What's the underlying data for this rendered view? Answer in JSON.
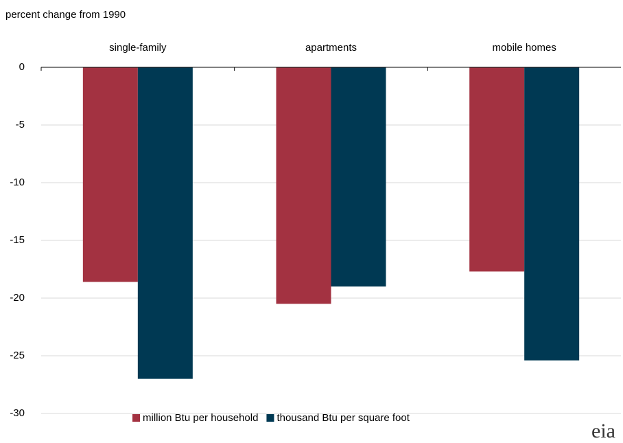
{
  "chart_data": {
    "type": "bar",
    "y_axis_label": "percent change from 1990",
    "categories": [
      "single-family",
      "apartments",
      "mobile homes"
    ],
    "series": [
      {
        "name": "million Btu per household",
        "color": "#a33241",
        "values": [
          -18.6,
          -20.5,
          -17.7
        ]
      },
      {
        "name": "thousand Btu per square foot",
        "color": "#003953",
        "values": [
          -27.0,
          -19.0,
          -25.4
        ]
      }
    ],
    "ylim": [
      -30,
      0
    ],
    "yticks": [
      0,
      -5,
      -10,
      -15,
      -20,
      -25,
      -30
    ],
    "grid": true,
    "legend": "bottom",
    "logo": "eia"
  }
}
